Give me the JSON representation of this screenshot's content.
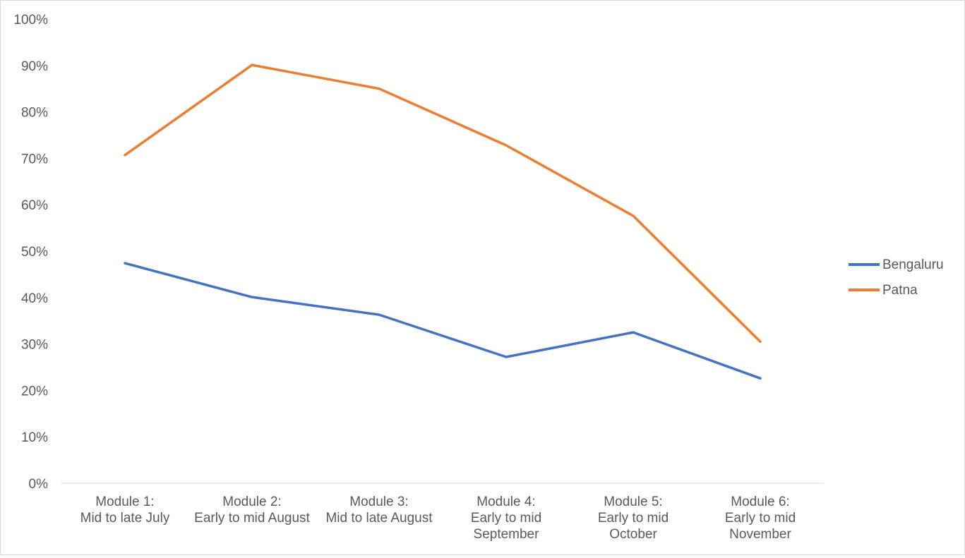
{
  "chart_data": {
    "type": "line",
    "title": "",
    "xlabel": "",
    "ylabel": "",
    "ylim": [
      0,
      100
    ],
    "yticks": [
      "0%",
      "10%",
      "20%",
      "30%",
      "40%",
      "50%",
      "60%",
      "70%",
      "80%",
      "90%",
      "100%"
    ],
    "grid": false,
    "legend_position": "right",
    "categories": [
      [
        "Module 1:",
        "Mid to late July"
      ],
      [
        "Module 2:",
        "Early to mid August"
      ],
      [
        "Module 3:",
        "Mid to late August"
      ],
      [
        "Module 4:",
        "Early to mid",
        "September"
      ],
      [
        "Module 5:",
        "Early to mid",
        "October"
      ],
      [
        "Module 6:",
        "Early to mid",
        "November"
      ]
    ],
    "series": [
      {
        "name": "Bengaluru",
        "color": "#4472c4",
        "values": [
          47.4,
          40.1,
          36.3,
          27.2,
          32.5,
          22.6
        ]
      },
      {
        "name": "Patna",
        "color": "#ed7d31",
        "values": [
          70.7,
          90.1,
          85.0,
          72.8,
          57.6,
          30.5
        ]
      }
    ]
  }
}
